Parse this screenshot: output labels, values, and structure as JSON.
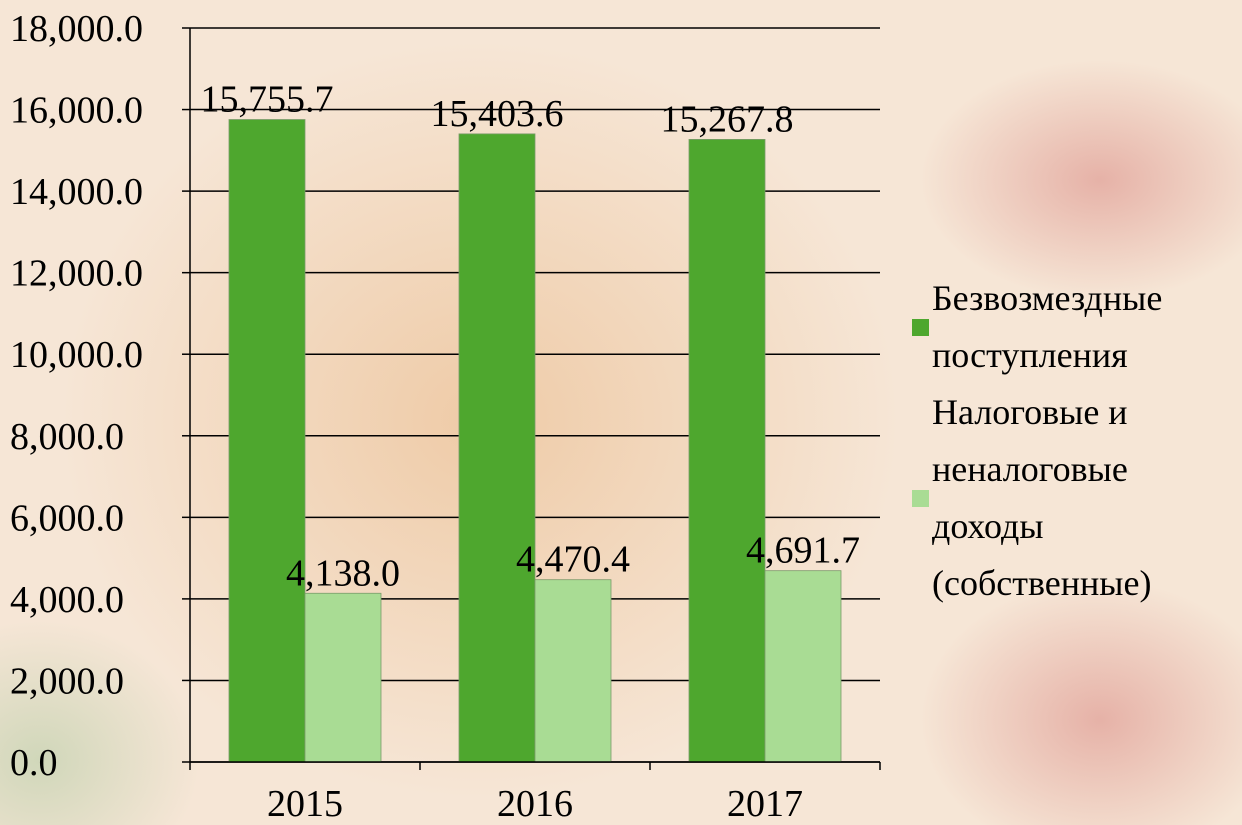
{
  "chart_data": {
    "type": "bar",
    "categories": [
      "2015",
      "2016",
      "2017"
    ],
    "series": [
      {
        "name": "Безвозмездные поступления",
        "color": "#4ea72e",
        "values": [
          15755.7,
          15403.6,
          15267.8
        ],
        "value_labels": [
          "15,755.7",
          "15,403.6",
          "15,267.8"
        ]
      },
      {
        "name": "Налоговые и неналоговые доходы (собственные)",
        "color": "#a9dc94",
        "values": [
          4138.0,
          4470.4,
          4691.7
        ],
        "value_labels": [
          "4,138.0",
          "4,470.4",
          "4,691.7"
        ]
      }
    ],
    "ylim": [
      0,
      18000
    ],
    "yticks": [
      {
        "value": 0,
        "label": "0.0"
      },
      {
        "value": 2000,
        "label": "2,000.0"
      },
      {
        "value": 4000,
        "label": "4,000.0"
      },
      {
        "value": 6000,
        "label": "6,000.0"
      },
      {
        "value": 8000,
        "label": "8,000.0"
      },
      {
        "value": 10000,
        "label": "10,000.0"
      },
      {
        "value": 12000,
        "label": "12,000.0"
      },
      {
        "value": 14000,
        "label": "14,000.0"
      },
      {
        "value": 16000,
        "label": "16,000.0"
      },
      {
        "value": 18000,
        "label": "18,000.0"
      }
    ],
    "grid": true,
    "legend": "right"
  }
}
